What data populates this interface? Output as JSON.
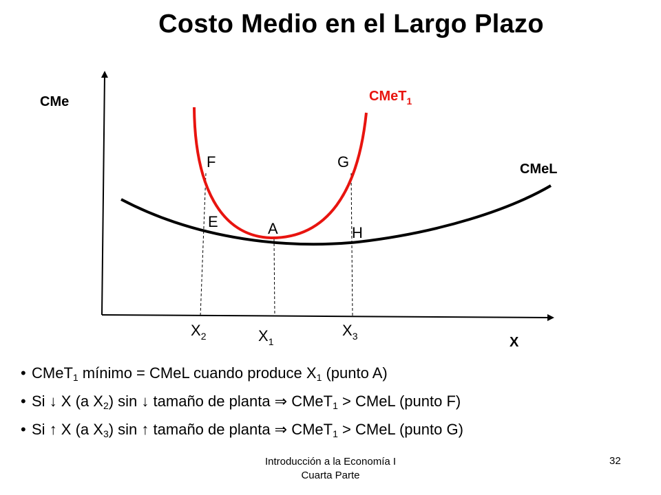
{
  "title": "Costo Medio en el Largo Plazo",
  "colors": {
    "cmet1": "#e8140f",
    "cmel": "#000000",
    "axis": "#000000"
  },
  "diagram": {
    "y_axis_label": "CMe",
    "x_axis_label": "X",
    "curves": {
      "cmet1": {
        "label_main": "CMeT",
        "label_sub": "1"
      },
      "cmel": {
        "label": "CMeL"
      }
    },
    "points": {
      "F": "F",
      "G": "G",
      "E": "E",
      "A": "A",
      "H": "H"
    },
    "x_ticks": [
      {
        "main": "X",
        "sub": "2"
      },
      {
        "main": "X",
        "sub": "1"
      },
      {
        "main": "X",
        "sub": "3"
      }
    ]
  },
  "bullets": [
    {
      "parts": [
        {
          "text": "CMeT"
        },
        {
          "sub": "1"
        },
        {
          "text": " mínimo = CMeL cuando produce X"
        },
        {
          "sub": "1"
        },
        {
          "text": " (punto A)"
        }
      ]
    },
    {
      "parts": [
        {
          "text": "Si "
        },
        {
          "icon": "down-arrow-icon",
          "glyph": "↓"
        },
        {
          "text": " X (a X"
        },
        {
          "sub": "2"
        },
        {
          "text": ") sin "
        },
        {
          "icon": "down-arrow-icon",
          "glyph": "↓"
        },
        {
          "text": " tamaño de planta "
        },
        {
          "icon": "implies-arrow-icon",
          "glyph": "⇒"
        },
        {
          "text": " CMeT"
        },
        {
          "sub": "1"
        },
        {
          "text": " > CMeL (punto F)"
        }
      ]
    },
    {
      "parts": [
        {
          "text": "Si "
        },
        {
          "icon": "up-arrow-icon",
          "glyph": "↑"
        },
        {
          "text": " X (a X"
        },
        {
          "sub": "3"
        },
        {
          "text": ") sin "
        },
        {
          "icon": "up-arrow-icon",
          "glyph": "↑"
        },
        {
          "text": " tamaño de planta "
        },
        {
          "icon": "implies-arrow-icon",
          "glyph": "⇒"
        },
        {
          "text": " CMeT"
        },
        {
          "sub": "1"
        },
        {
          "text": " > CMeL (punto G)"
        }
      ]
    }
  ],
  "footer": {
    "line1": "Introducción a la Economía I",
    "line2": "Cuarta Parte"
  },
  "page_number": "32"
}
